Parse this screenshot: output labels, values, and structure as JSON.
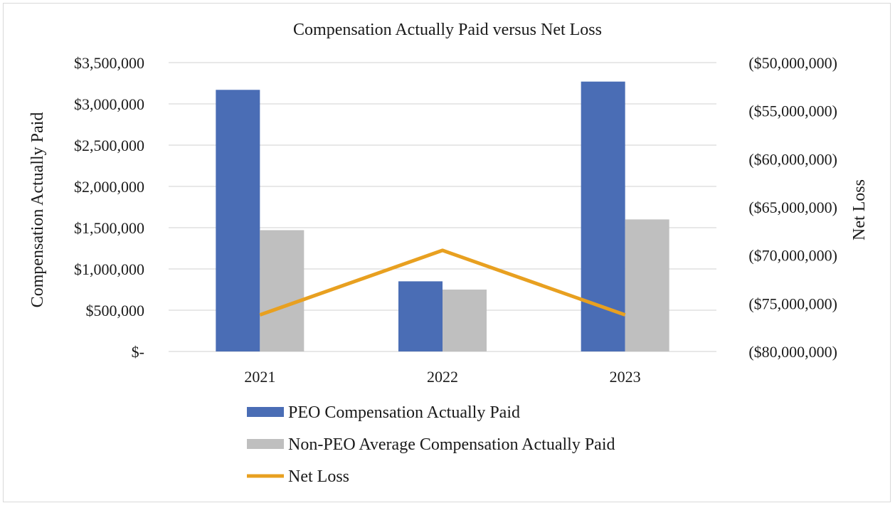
{
  "chart_data": {
    "type": "bar",
    "title": "Compensation Actually Paid versus Net Loss",
    "categories": [
      "2021",
      "2022",
      "2023"
    ],
    "ylabel": "Compensation Actually Paid",
    "y2label": "Net Loss",
    "ylim": [
      0,
      3500000
    ],
    "y2lim": [
      -80000000,
      -50000000
    ],
    "y_ticks": [
      0,
      500000,
      1000000,
      1500000,
      2000000,
      2500000,
      3000000,
      3500000
    ],
    "y_tick_labels": [
      "$-",
      "$500,000",
      "$1,000,000",
      "$1,500,000",
      "$2,000,000",
      "$2,500,000",
      "$3,000,000",
      "$3,500,000"
    ],
    "y2_ticks": [
      -80000000,
      -75000000,
      -70000000,
      -65000000,
      -60000000,
      -55000000,
      -50000000
    ],
    "y2_tick_labels": [
      "($80,000,000)",
      "($75,000,000)",
      "($70,000,000)",
      "($65,000,000)",
      "($60,000,000)",
      "($55,000,000)",
      "($50,000,000)"
    ],
    "grid": true,
    "legend_position": "bottom",
    "series": [
      {
        "name": "PEO Compensation Actually Paid",
        "type": "bar",
        "axis": "left",
        "color": "#4a6db5",
        "values": [
          3170000,
          850000,
          3270000
        ]
      },
      {
        "name": "Non-PEO Average Compensation Actually Paid",
        "type": "bar",
        "axis": "left",
        "color": "#bfbfbf",
        "values": [
          1470000,
          750000,
          1600000
        ]
      },
      {
        "name": "Net Loss",
        "type": "line",
        "axis": "right",
        "color": "#e8a020",
        "values": [
          -76200000,
          -69500000,
          -76200000
        ]
      }
    ]
  }
}
